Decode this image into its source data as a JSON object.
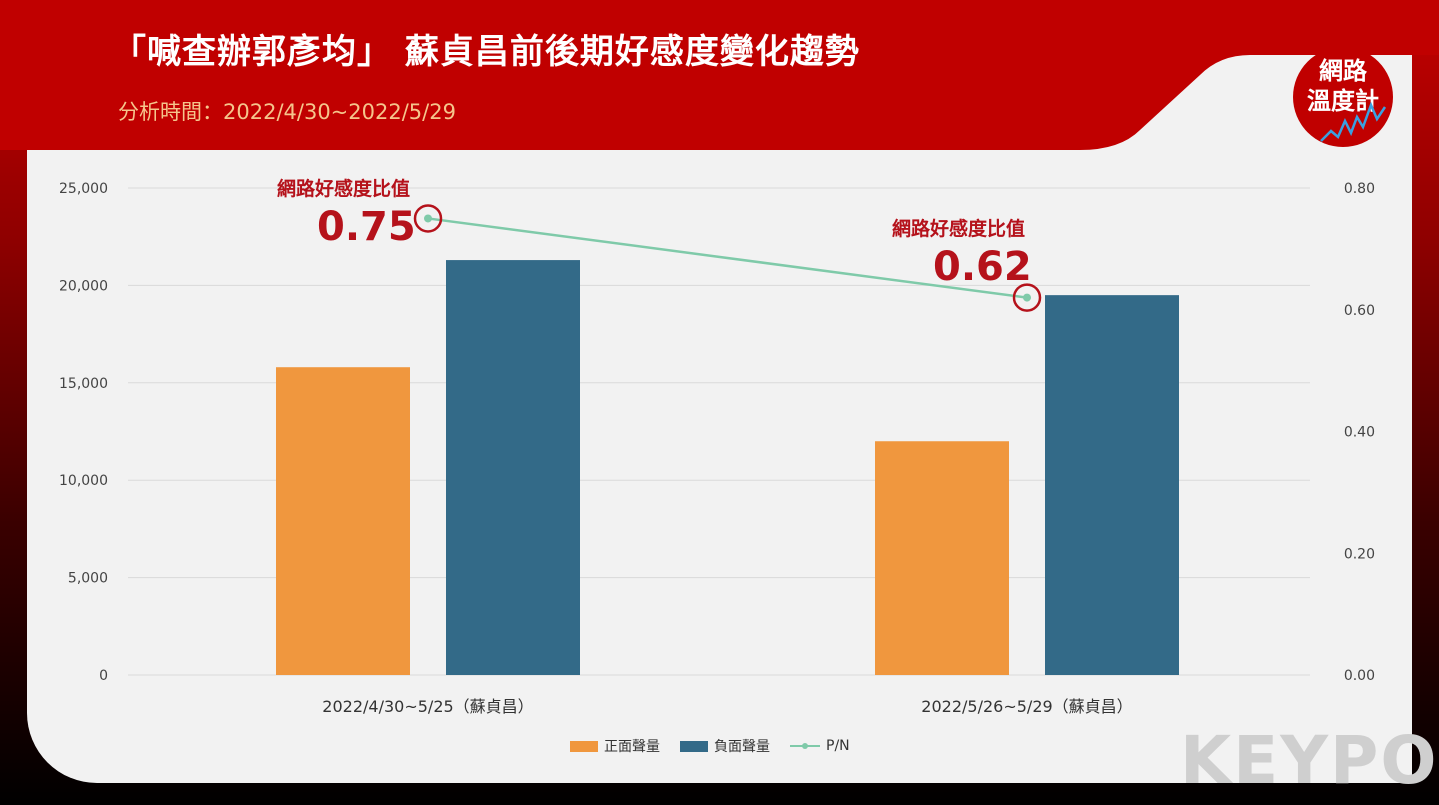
{
  "header": {
    "title": "「喊查辦郭彥均」 蘇貞昌前後期好感度變化趨勢",
    "subtitle": "分析時間：2022/4/30~2022/5/29"
  },
  "logo": {
    "line1": "網路",
    "line2": "溫度計"
  },
  "watermark": "KEYPO",
  "annotations": [
    {
      "label": "網路好感度比值",
      "value": "0.75"
    },
    {
      "label": "網路好感度比值",
      "value": "0.62"
    }
  ],
  "legend": {
    "positive": "正面聲量",
    "negative": "負面聲量",
    "ratio": "P/N"
  },
  "colors": {
    "positive": "#f0973e",
    "negative": "#336a88",
    "ratio": "#7fcaa9",
    "highlight": "#b5121b"
  },
  "chart_data": {
    "type": "bar",
    "categories": [
      "2022/4/30~5/25（蘇貞昌）",
      "2022/5/26~5/29（蘇貞昌）"
    ],
    "series": [
      {
        "name": "正面聲量",
        "type": "bar",
        "axis": "left",
        "values": [
          15800,
          12000
        ]
      },
      {
        "name": "負面聲量",
        "type": "bar",
        "axis": "left",
        "values": [
          21300,
          19500
        ]
      },
      {
        "name": "P/N",
        "type": "line",
        "axis": "right",
        "values": [
          0.75,
          0.62
        ]
      }
    ],
    "ylim": [
      0,
      25000
    ],
    "yticks": [
      "0",
      "5,000",
      "10,000",
      "15,000",
      "20,000",
      "25,000"
    ],
    "y2lim": [
      0,
      0.8
    ],
    "y2ticks": [
      "0.00",
      "0.20",
      "0.40",
      "0.60",
      "0.80"
    ],
    "grid": true,
    "legend_position": "bottom"
  }
}
